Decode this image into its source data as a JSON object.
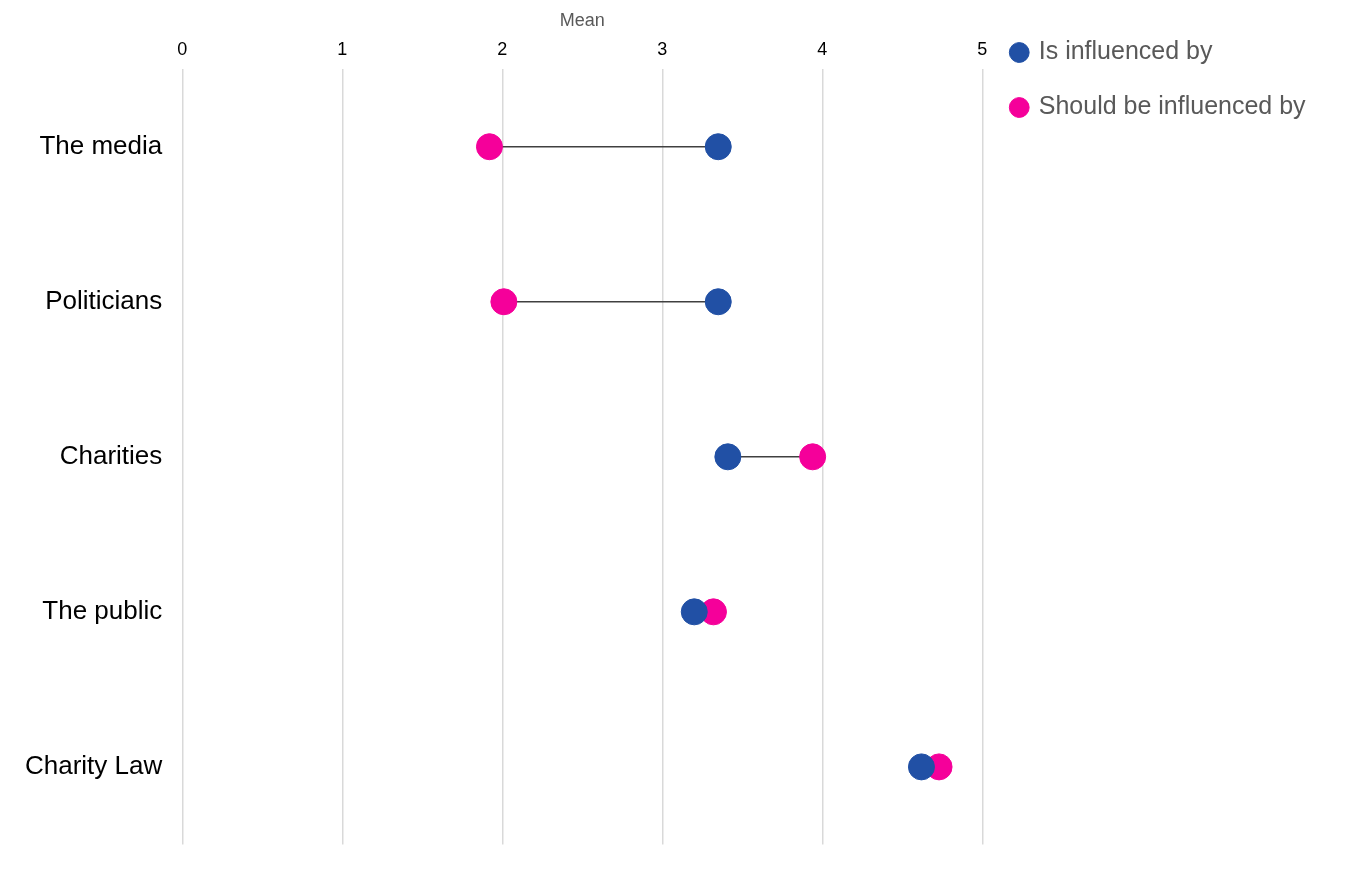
{
  "chart_data": {
    "type": "scatter",
    "orientation": "horizontal",
    "xlabel": "Mean",
    "categories": [
      "The media",
      "Politicians",
      "Charities",
      "The public",
      "Charity Law"
    ],
    "series": [
      {
        "name": "Is influenced by",
        "color": "#2150a5",
        "values": [
          3.35,
          3.35,
          3.41,
          3.2,
          4.62
        ]
      },
      {
        "name": "Should be influenced by",
        "color": "#f5009a",
        "values": [
          1.92,
          2.01,
          3.94,
          3.32,
          4.73
        ]
      }
    ],
    "xlim": [
      0,
      5
    ],
    "xticks": [
      0,
      1,
      2,
      3,
      4,
      5
    ],
    "grid": "x",
    "legend": "top right",
    "marker": "circle"
  }
}
